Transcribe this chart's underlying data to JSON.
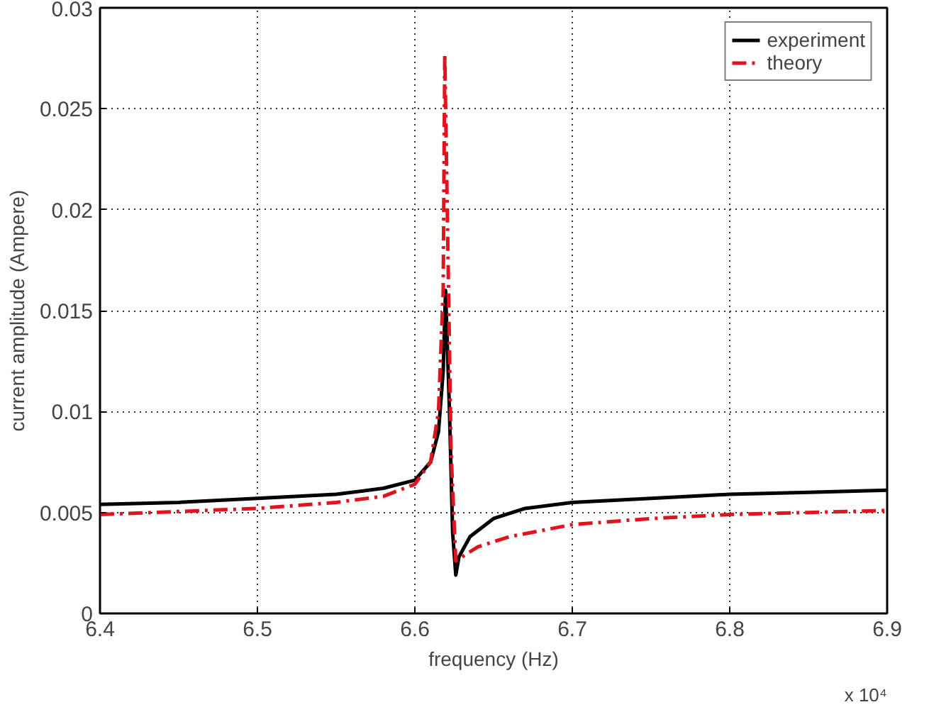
{
  "chart_data": {
    "type": "line",
    "xlabel": "frequency (Hz)",
    "ylabel": "current amplitude (Ampere)",
    "xlim": [
      6.4,
      6.9
    ],
    "xticks": [
      6.4,
      6.5,
      6.6,
      6.7,
      6.8,
      6.9
    ],
    "ylim": [
      0,
      0.03
    ],
    "yticks": [
      0,
      0.005,
      0.01,
      0.015,
      0.02,
      0.025,
      0.03
    ],
    "grid": true,
    "legend": "top right",
    "annotations": [
      "x 10⁴"
    ],
    "series": [
      {
        "name": "experiment",
        "color": "#000000",
        "line_style": "solid",
        "x": [
          6.4,
          6.45,
          6.5,
          6.55,
          6.58,
          6.6,
          6.61,
          6.615,
          6.618,
          6.6195,
          6.622,
          6.624,
          6.626,
          6.628,
          6.635,
          6.65,
          6.67,
          6.7,
          6.75,
          6.8,
          6.85,
          6.9
        ],
        "values": [
          0.0054,
          0.0055,
          0.0057,
          0.0059,
          0.0062,
          0.0066,
          0.0075,
          0.009,
          0.012,
          0.016,
          0.01,
          0.004,
          0.0019,
          0.0028,
          0.0038,
          0.0047,
          0.0052,
          0.0055,
          0.0057,
          0.0059,
          0.006,
          0.0061
        ]
      },
      {
        "name": "theory",
        "color": "#e0141e",
        "line_style": "dashdot",
        "x": [
          6.4,
          6.5,
          6.55,
          6.58,
          6.6,
          6.61,
          6.615,
          6.618,
          6.619,
          6.621,
          6.623,
          6.626,
          6.63,
          6.64,
          6.66,
          6.7,
          6.75,
          6.8,
          6.85,
          6.9
        ],
        "values": [
          0.0049,
          0.0052,
          0.0055,
          0.0058,
          0.0064,
          0.0075,
          0.01,
          0.016,
          0.0277,
          0.018,
          0.008,
          0.0026,
          0.0028,
          0.0033,
          0.0038,
          0.0044,
          0.0047,
          0.0049,
          0.005,
          0.0051
        ]
      }
    ]
  }
}
